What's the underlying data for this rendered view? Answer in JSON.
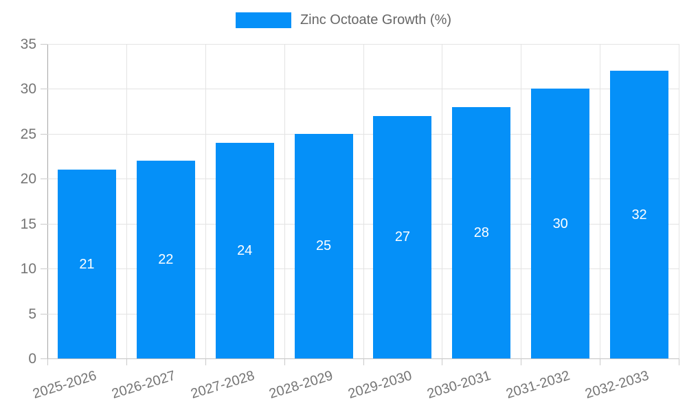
{
  "chart_data": {
    "type": "bar",
    "title": "",
    "legend": {
      "position": "top",
      "items": [
        {
          "label": "Zinc Octoate Growth (%)",
          "color": "#0590f8"
        }
      ]
    },
    "categories": [
      "2025-2026",
      "2026-2027",
      "2027-2028",
      "2028-2029",
      "2029-2030",
      "2030-2031",
      "2031-2032",
      "2032-2033"
    ],
    "values": [
      21,
      22,
      24,
      25,
      27,
      28,
      30,
      32
    ],
    "bar_labels": [
      "21",
      "22",
      "24",
      "25",
      "27",
      "28",
      "30",
      "32"
    ],
    "xlabel": "",
    "ylabel": "",
    "ylim": [
      0,
      35
    ],
    "yticks": [
      0,
      5,
      10,
      15,
      20,
      25,
      30,
      35
    ],
    "grid": true,
    "colors": {
      "bar": "#0590f8",
      "bar_label_text": "#ffffff",
      "gridline": "#e3e3e3",
      "y_axis_line": "#a6a6a6",
      "x_axis_line": "#c2c2c2",
      "tick_mark": "#c9c9c9",
      "tick_text": "#757575",
      "legend_text": "#666666",
      "background": "#ffffff"
    }
  }
}
